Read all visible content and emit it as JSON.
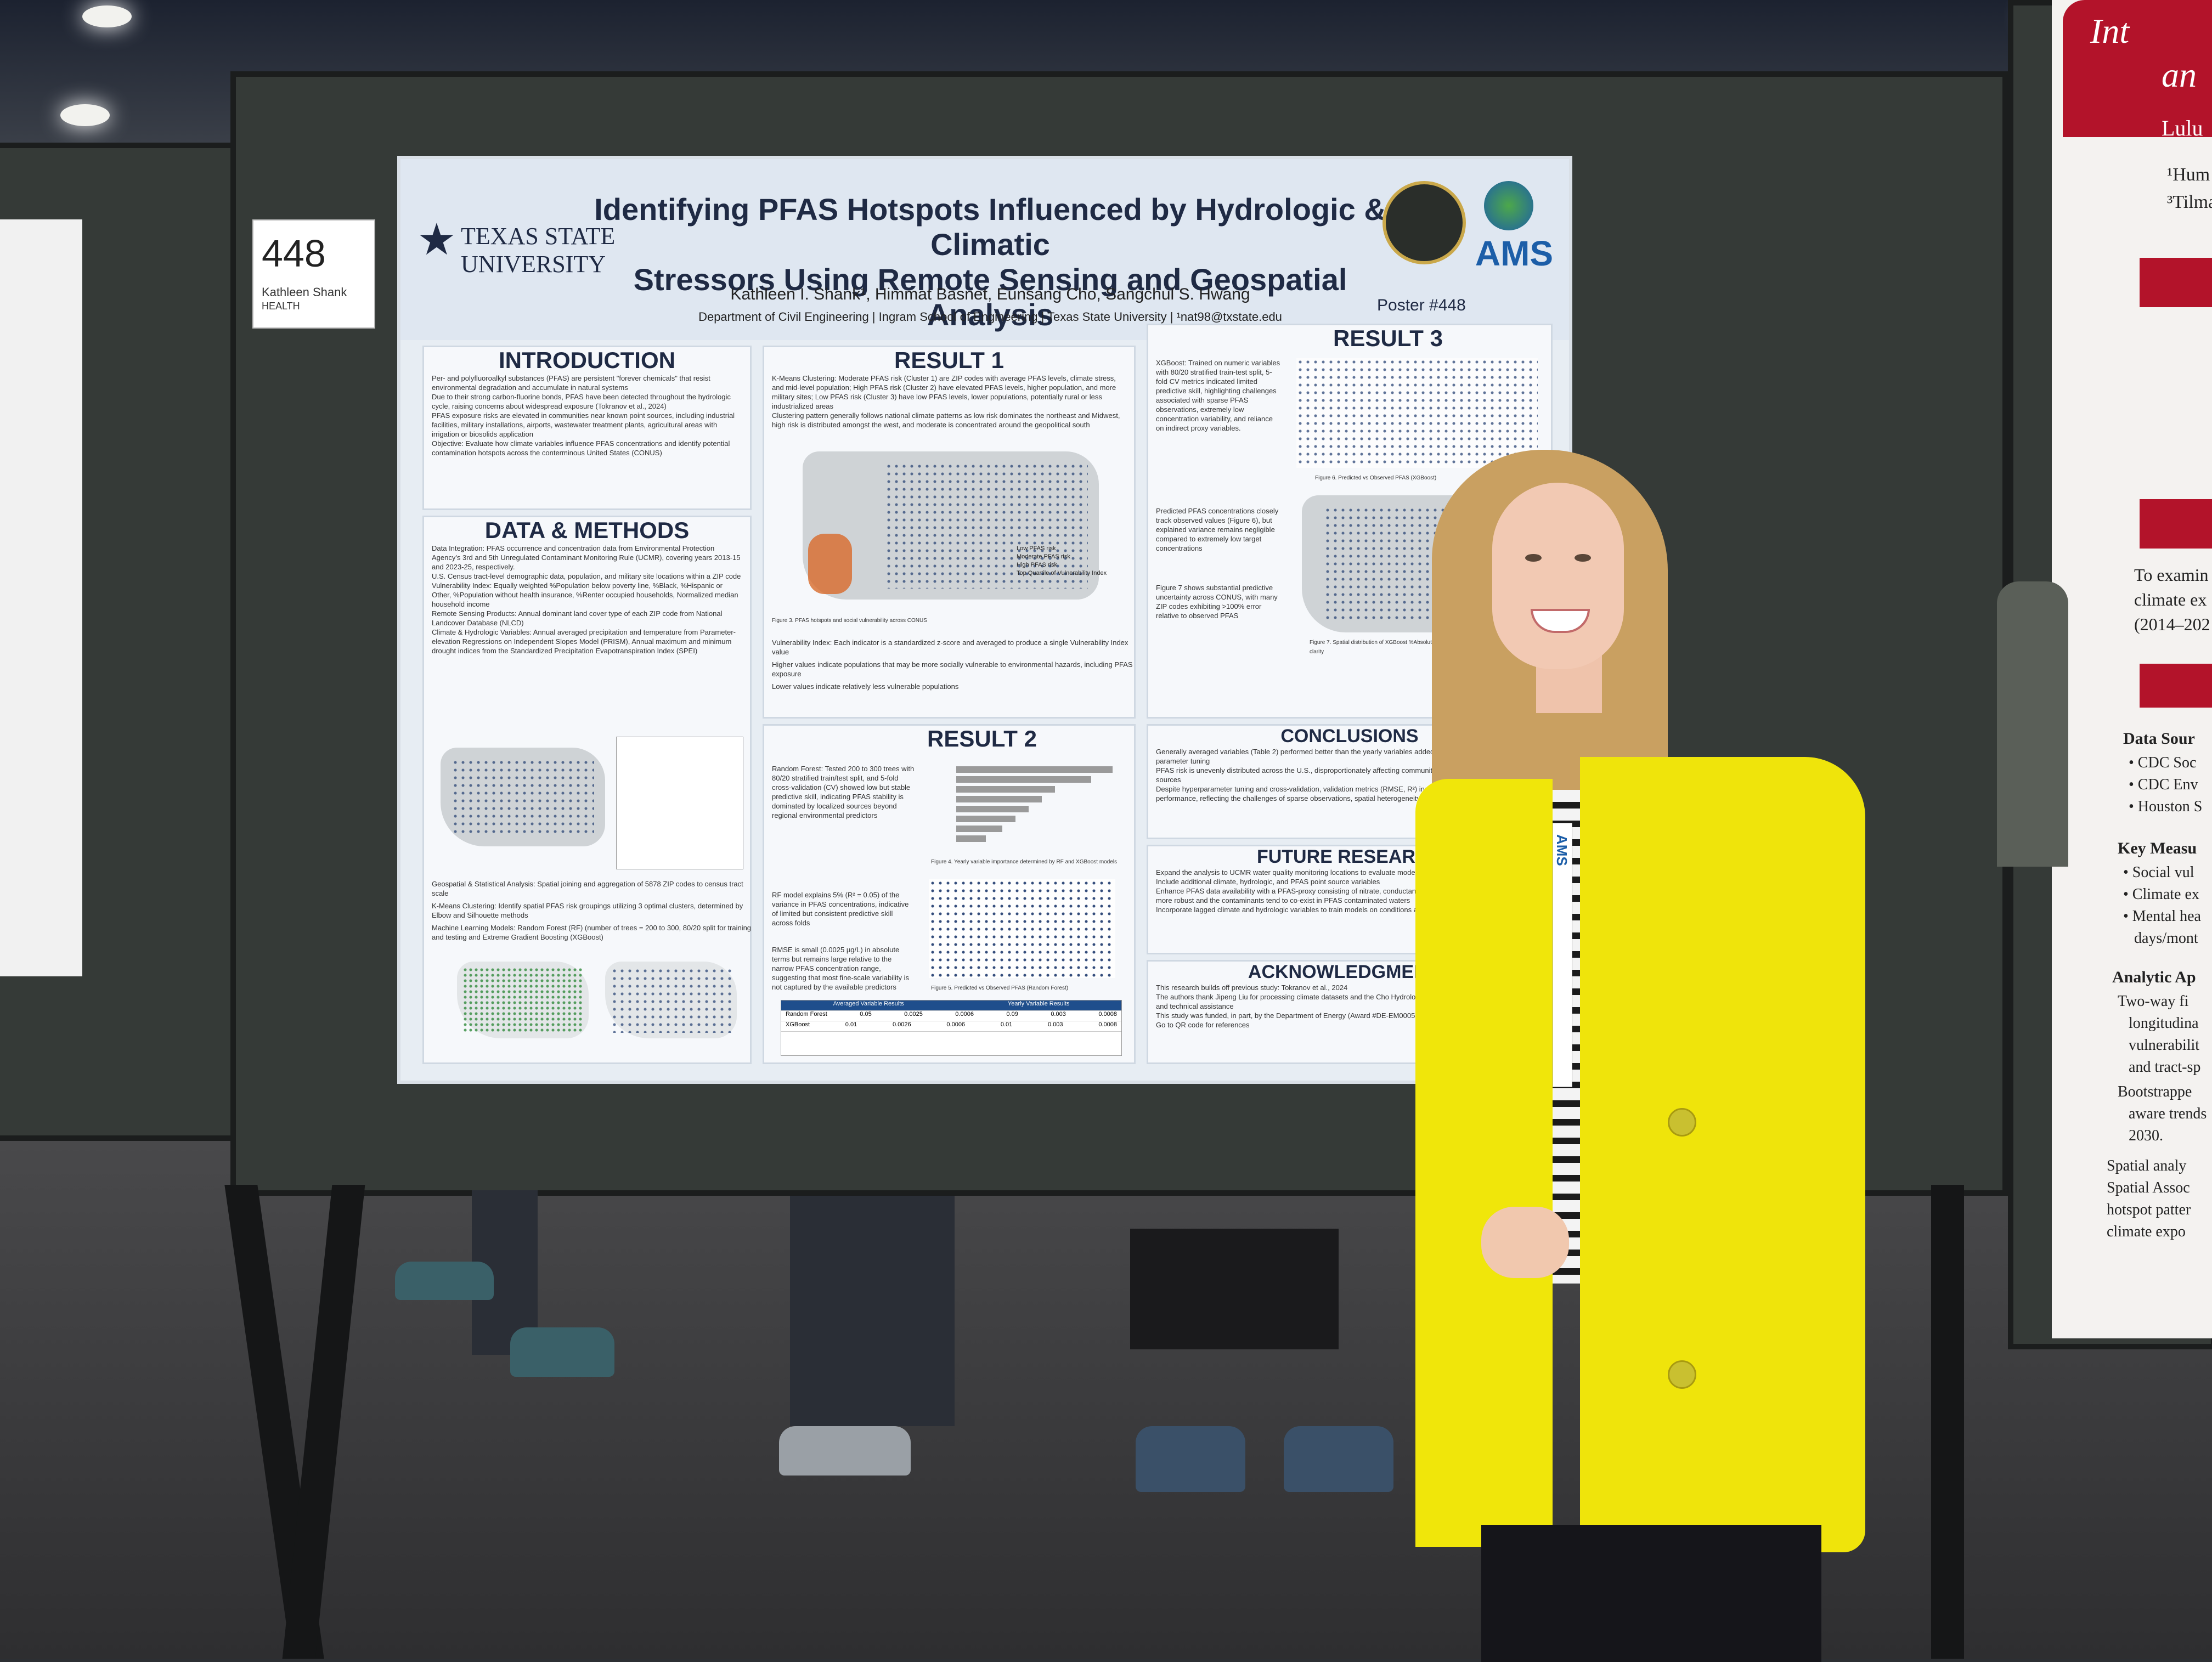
{
  "booth_card": {
    "number": "448",
    "name": "Kathleen Shank",
    "category": "HEALTH"
  },
  "poster": {
    "institution": "TEXAS STATE UNIVERSITY",
    "title_line1": "Identifying PFAS Hotspots Influenced by Hydrologic & Climatic",
    "title_line2": "Stressors Using Remote Sensing and Geospatial Analysis",
    "authors": "Kathleen I. Shank¹, Himmat Basnet, Eunsang Cho, Sangchul S. Hwang",
    "affiliation": "Department of Civil Engineering | Ingram School of Engineering | Texas State University | ¹nat98@txstate.edu",
    "poster_number": "Poster #448",
    "sponsor_logo": "AMS",
    "sections": {
      "introduction": "INTRODUCTION",
      "data_methods": "DATA & METHODS",
      "result1": "RESULT 1",
      "result2": "RESULT 2",
      "result3": "RESULT 3",
      "conclusions": "CONCLUSIONS",
      "future_research": "FUTURE RESEARCH",
      "acknowledgments": "ACKNOWLEDGMENTS"
    },
    "intro_text": [
      "Per- and polyfluoroalkyl substances (PFAS) are persistent \"forever chemicals\" that resist environmental degradation and accumulate in natural systems",
      "Due to their strong carbon-fluorine bonds, PFAS have been detected throughout the hydrologic cycle, raising concerns about widespread exposure (Tokranov et al., 2024)",
      "PFAS exposure risks are elevated in communities near known point sources, including industrial facilities, military installations, airports, wastewater treatment plants, agricultural areas with irrigation or biosolids application",
      "Objective: Evaluate how climate variables influence PFAS concentrations and identify potential contamination hotspots across the conterminous United States (CONUS)"
    ],
    "methods_text": [
      "Data Integration: PFAS occurrence and concentration data from Environmental Protection Agency's 3rd and 5th Unregulated Contaminant Monitoring Rule (UCMR), covering years 2013-15 and 2023-25, respectively.",
      "U.S. Census tract-level demographic data, population, and military site locations within a ZIP code",
      "Vulnerability Index: Equally weighted %Population below poverty line, %Black, %Hispanic or Other, %Population without health insurance, %Renter occupied households, Normalized median household income",
      "Remote Sensing Products: Annual dominant land cover type of each ZIP code from National Landcover Database (NLCD)",
      "Climate & Hydrologic Variables: Annual averaged precipitation and temperature from Parameter-elevation Regressions on Independent Slopes Model (PRISM), Annual maximum and minimum drought indices from the Standardized Precipitation Evapotranspiration Index (SPEI)",
      "Geospatial & Statistical Analysis: Spatial joining and aggregation of 5878 ZIP codes to census tract scale",
      "K-Means Clustering: Identify spatial PFAS risk groupings utilizing 3 optimal clusters, determined by Elbow and Silhouette methods",
      "Machine Learning Models: Random Forest (RF) (number of trees = 200 to 300, 80/20 split for training and testing and Extreme Gradient Boosting (XGBoost)"
    ],
    "result1_text": [
      "K-Means Clustering: Moderate PFAS risk (Cluster 1) are ZIP codes with average PFAS levels, climate stress, and mid-level population; High PFAS risk (Cluster 2) have elevated PFAS levels, higher population, and more military sites; Low PFAS risk (Cluster 3) have low PFAS levels, lower populations, potentially rural or less industrialized areas",
      "Clustering pattern generally follows national climate patterns as low risk dominates the northeast and Midwest, high risk is distributed amongst the west, and moderate is concentrated around the geopolitical south",
      "Vulnerability Index: Each indicator is a standardized z-score and averaged to produce a single Vulnerability Index value",
      "Higher values indicate populations that may be more socially vulnerable to environmental hazards, including PFAS exposure",
      "Lower values indicate relatively less vulnerable populations"
    ],
    "result1_legend": [
      "Low PFAS risk",
      "Moderate PFAS risk",
      "High PFAS risk",
      "Top Quartile of Vulnerability Index"
    ],
    "result2_text": [
      "Random Forest: Tested 200 to 300 trees with 80/20 stratified train/test split, and 5-fold cross-validation (CV) showed low but stable predictive skill, indicating PFAS stability is dominated by localized sources beyond regional environmental predictors",
      "RF model explains 5% (R² = 0.05) of the variance in PFAS concentrations, indicative of limited but consistent predictive skill across folds",
      "RMSE is small (0.0025 µg/L) in absolute terms but remains large relative to the narrow PFAS concentration range, suggesting that most fine-scale variability is not captured by the available predictors"
    ],
    "result3_text": [
      "XGBoost: Trained on numeric variables with 80/20 stratified train-test split, 5-fold CV metrics indicated limited predictive skill, highlighting challenges associated with sparse PFAS observations, extremely low concentration variability, and reliance on indirect proxy variables.",
      "Predicted PFAS concentrations closely track observed values (Figure 6), but explained variance remains negligible compared to extremely low target concentrations",
      "Figure 7 shows substantial predictive uncertainty across CONUS, with many ZIP codes exhibiting >100% error relative to observed PFAS"
    ],
    "conclusions_text": [
      "Generally averaged variables (Table 2) performed better than the yearly variables added noise in the data, despite hyper-parameter tuning",
      "PFAS risk is unevenly distributed across the U.S., disproportionately affecting communities near known contamination sources",
      "Despite hyperparameter tuning and cross-validation, validation metrics (RMSE, R²) indicate moderate predictive performance, reflecting the challenges of sparse observations, spatial heterogeneity, and complex environmental drivers"
    ],
    "future_text": [
      "Expand the analysis to UCMR water quality monitoring locations to evaluate model accuracy",
      "Include additional climate, hydrologic, and PFAS point source variables",
      "Enhance PFAS data availability with a PFAS-proxy consisting of nitrate, conductance, and tritium detections as this data is more robust and the contaminants tend to co-exist in PFAS contaminated waters",
      "Incorporate lagged climate and hydrologic variables to train models on conditions and predict future PFAS concentrations"
    ],
    "ack_text": [
      "This research builds off previous study: Tokranov et al., 2024",
      "The authors thank Jipeng Liu for processing climate datasets and the Cho Hydrology Lab for research direction, feedback, and technical assistance",
      "This study was funded, in part, by the Department of Energy (Award #DE-EM0005314)",
      "Go to QR code for references"
    ],
    "result2_bar_importance": [
      0.95,
      0.82,
      0.6,
      0.52,
      0.44,
      0.36,
      0.28,
      0.18
    ],
    "table_headers": [
      "Averaged Variable Results",
      "Yearly Variable Results"
    ],
    "table_rows": [
      {
        "model": "Random Forest",
        "a": "0.05",
        "b": "0.0025",
        "c": "0.0006",
        "d": "0.09",
        "e": "0.003",
        "f": "0.0008"
      },
      {
        "model": "XGBoost",
        "a": "0.01",
        "b": "0.0026",
        "c": "0.0006",
        "d": "0.01",
        "e": "0.003",
        "f": "0.0008"
      }
    ],
    "fig_captions": {
      "fig3": "Figure 3. PFAS hotspots and social vulnerability across CONUS",
      "fig4": "Figure 4. Yearly variable importance determined by RF and XGBoost models",
      "fig5": "Figure 5. Predicted vs Observed PFAS (Random Forest)",
      "fig6": "Figure 6. Predicted vs Observed PFAS (XGBoost)",
      "fig7": "Figure 7. Spatial distribution of XGBoost %Absolute Error with error values clipped at 200% for visual clarity"
    }
  },
  "right_poster": {
    "lines": [
      "Int",
      "an",
      "Lulu",
      "¹Hum",
      "³Tilma",
      "To examin",
      "climate ex",
      "(2014–202",
      "Data Sour",
      "• CDC Soc",
      "• CDC Env",
      "• Houston S",
      "Key Measu",
      "• Social vul",
      "• Climate ex",
      "• Mental hea",
      "days/mont",
      "Analytic Ap",
      "Two-way fi",
      "longitudina",
      "vulnerabilit",
      "and tract-sp",
      "Bootstrappe",
      "aware trends",
      "2030.",
      "Spatial analy",
      "Spatial Assoc",
      "hotspot patter",
      "climate expo"
    ]
  },
  "lanyard": {
    "text": "AMS"
  }
}
